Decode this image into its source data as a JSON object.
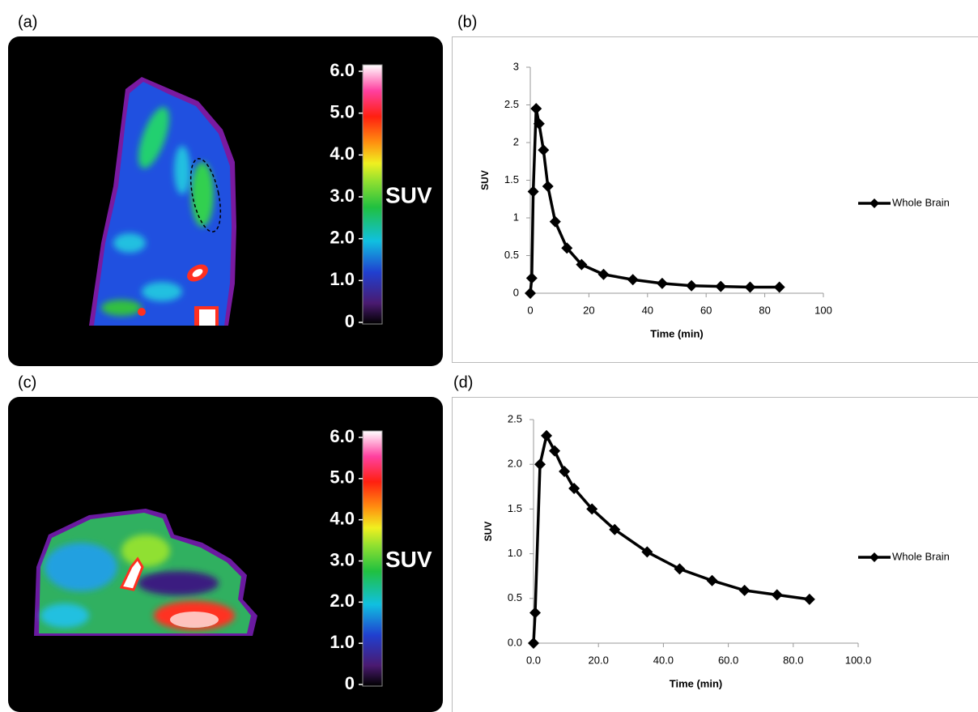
{
  "panel_labels": [
    "(a)",
    "(b)",
    "(c)",
    "(d)"
  ],
  "colorbars": [
    {
      "label": "SUV",
      "lim": [
        0,
        6
      ],
      "ticks": [
        0,
        {
          "value": 1,
          "label": "1.0"
        },
        {
          "value": 2,
          "label": "2.0"
        },
        {
          "value": 3,
          "label": "3.0"
        },
        {
          "value": 4,
          "label": "4.0"
        },
        {
          "value": 5,
          "label": "5.0"
        },
        {
          "value": 6,
          "label": "6.0"
        }
      ]
    },
    {
      "label": "SUV",
      "lim": [
        0,
        6
      ],
      "ticks": [
        0,
        {
          "value": 1,
          "label": "1.0"
        },
        {
          "value": 2,
          "label": "2.0"
        },
        {
          "value": 3,
          "label": "3.0"
        },
        {
          "value": 4,
          "label": "4.0"
        },
        {
          "value": 5,
          "label": "5.0"
        },
        {
          "value": 6,
          "label": "6.0"
        }
      ]
    }
  ],
  "chart_data": [
    {
      "type": "line",
      "xlabel": "Time (min)",
      "ylabel": "SUV",
      "x": [
        0,
        0.5,
        1,
        2,
        3,
        4.5,
        6,
        8.5,
        12.5,
        17.5,
        25,
        35,
        45,
        55,
        65,
        75,
        85
      ],
      "series": [
        {
          "name": "Whole Brain",
          "color": "#000000",
          "values": [
            0,
            0.2,
            1.35,
            2.45,
            2.25,
            1.9,
            1.42,
            0.95,
            0.6,
            0.38,
            0.25,
            0.18,
            0.13,
            0.1,
            0.09,
            0.08,
            0.08
          ]
        }
      ],
      "xlim": [
        0,
        100
      ],
      "xticks": [
        0,
        20,
        40,
        60,
        80,
        100
      ],
      "ylim": [
        0,
        3
      ],
      "yticks": [
        0,
        0.5,
        1,
        1.5,
        2,
        2.5,
        3
      ],
      "legend": "right"
    },
    {
      "type": "line",
      "xlabel": "Time (min)",
      "ylabel": "SUV",
      "x": [
        0,
        0.5,
        2,
        4,
        6.5,
        9.5,
        12.5,
        18,
        25,
        35,
        45,
        55,
        65,
        75,
        85
      ],
      "series": [
        {
          "name": "Whole Brain",
          "color": "#000000",
          "values": [
            0,
            0.34,
            2.0,
            2.32,
            2.15,
            1.92,
            1.73,
            1.5,
            1.27,
            1.02,
            0.83,
            0.7,
            0.59,
            0.54,
            0.49
          ]
        }
      ],
      "xlim": [
        0,
        100
      ],
      "xticks": [
        {
          "value": 0,
          "label": "0.0"
        },
        {
          "value": 20,
          "label": "20.0"
        },
        {
          "value": 40,
          "label": "40.0"
        },
        {
          "value": 60,
          "label": "60.0"
        },
        {
          "value": 80,
          "label": "80.0"
        },
        {
          "value": 100,
          "label": "100.0"
        }
      ],
      "ylim": [
        0,
        2.5
      ],
      "yticks": [
        {
          "value": 0,
          "label": "0.0"
        },
        {
          "value": 0.5,
          "label": "0.5"
        },
        {
          "value": 1,
          "label": "1.0"
        },
        {
          "value": 1.5,
          "label": "1.5"
        },
        {
          "value": 2,
          "label": "2.0"
        },
        {
          "value": 2.5,
          "label": "2.5"
        }
      ],
      "legend": "right"
    }
  ]
}
